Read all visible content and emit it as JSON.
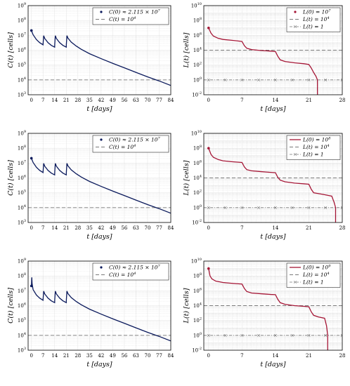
{
  "chart_data": [
    {
      "type": "line",
      "xlabel": "t [days]",
      "ylabel": "C(t) [cells]",
      "xlim": [
        -2,
        84
      ],
      "xticks": [
        0,
        7,
        14,
        21,
        28,
        35,
        42,
        49,
        56,
        63,
        70,
        77,
        84
      ],
      "ylim_exp": [
        3,
        9
      ],
      "yscale": "log",
      "grid": true,
      "legend_position": "top-right",
      "legend": [
        "C(0) ≈ 2.115 × 10^7",
        "C(t) = 10^4"
      ],
      "initial_point": {
        "t": 0,
        "value": 21150000
      },
      "threshold": 10000,
      "series": [
        {
          "values": [
            [
              0,
              21150000.0
            ],
            [
              1,
              11000000.0
            ],
            [
              3,
              5200000.0
            ],
            [
              5,
              3200000.0
            ],
            [
              7,
              2300000.0
            ],
            [
              7.05,
              3000000.0
            ],
            [
              7.4,
              9500000.0
            ],
            [
              8,
              6200000.0
            ],
            [
              10,
              3200000.0
            ],
            [
              12,
              2100000.0
            ],
            [
              14,
              1600000.0
            ],
            [
              14.05,
              2500000.0
            ],
            [
              14.4,
              9500000.0
            ],
            [
              15,
              6200000.0
            ],
            [
              17,
              3200000.0
            ],
            [
              19,
              2100000.0
            ],
            [
              21,
              1600000.0
            ],
            [
              21.05,
              2500000.0
            ],
            [
              21.4,
              9500000.0
            ],
            [
              22,
              6500000.0
            ],
            [
              24,
              3500000.0
            ],
            [
              27,
              1900000.0
            ],
            [
              30,
              1150000.0
            ],
            [
              35,
              580000.0
            ],
            [
              42,
              270000.0
            ],
            [
              49,
              130000.0
            ],
            [
              56,
              65000.0
            ],
            [
              63,
              32000.0
            ],
            [
              70,
              16000.0
            ],
            [
              77,
              8500.0
            ],
            [
              84,
              4200.0
            ]
          ]
        }
      ]
    },
    {
      "type": "line",
      "xlabel": "t [days]",
      "ylabel": "L(t) [cells]",
      "xlim": [
        -1,
        28
      ],
      "xticks": [
        0,
        7,
        14,
        21,
        28
      ],
      "ylim_exp": [
        -2,
        10
      ],
      "yscale": "log",
      "grid": true,
      "legend_position": "top-right",
      "legend": [
        "L(0) = 10^7",
        "L(t) = 10^4",
        "L(t) = 1"
      ],
      "initial_point": {
        "t": 0,
        "value": 10000000
      },
      "threshold": 10000,
      "threshold2": 1,
      "series": [
        {
          "values": [
            [
              0,
              10000000.0
            ],
            [
              0.5,
              2000000.0
            ],
            [
              1,
              800000.0
            ],
            [
              2,
              400000.0
            ],
            [
              3,
              280000.0
            ],
            [
              5,
              210000.0
            ],
            [
              6,
              180000.0
            ],
            [
              7,
              150000.0
            ],
            [
              7.5,
              40000.0
            ],
            [
              8,
              18000.0
            ],
            [
              9,
              12000.0
            ],
            [
              11,
              9000.0
            ],
            [
              13,
              7500.0
            ],
            [
              14,
              6500.0
            ],
            [
              14.5,
              1500.0
            ],
            [
              15,
              500
            ],
            [
              16,
              300
            ],
            [
              18,
              200
            ],
            [
              20,
              150
            ],
            [
              21,
              120
            ],
            [
              21.5,
              40
            ],
            [
              22,
              10
            ],
            [
              22.5,
              3
            ],
            [
              22.8,
              1
            ],
            [
              22.8,
              0.01
            ]
          ]
        }
      ]
    },
    {
      "type": "line",
      "xlabel": "t [days]",
      "ylabel": "C(t) [cells]",
      "xlim": [
        -2,
        84
      ],
      "xticks": [
        0,
        7,
        14,
        21,
        28,
        35,
        42,
        49,
        56,
        63,
        70,
        77,
        84
      ],
      "ylim_exp": [
        3,
        9
      ],
      "yscale": "log",
      "grid": true,
      "legend_position": "top-right",
      "legend": [
        "C(0) ≈ 2.115 × 10^7",
        "C(t) = 10^4"
      ],
      "initial_point": {
        "t": 0,
        "value": 21150000
      },
      "threshold": 10000,
      "series": [
        {
          "values": [
            [
              0,
              21150000.0
            ],
            [
              1,
              11000000.0
            ],
            [
              3,
              5200000.0
            ],
            [
              5,
              3200000.0
            ],
            [
              7,
              2300000.0
            ],
            [
              7.05,
              3000000.0
            ],
            [
              7.4,
              9500000.0
            ],
            [
              8,
              6200000.0
            ],
            [
              10,
              3200000.0
            ],
            [
              12,
              2100000.0
            ],
            [
              14,
              1600000.0
            ],
            [
              14.05,
              2500000.0
            ],
            [
              14.4,
              9500000.0
            ],
            [
              15,
              6200000.0
            ],
            [
              17,
              3200000.0
            ],
            [
              19,
              2100000.0
            ],
            [
              21,
              1600000.0
            ],
            [
              21.05,
              2500000.0
            ],
            [
              21.4,
              9500000.0
            ],
            [
              22,
              6500000.0
            ],
            [
              24,
              3500000.0
            ],
            [
              27,
              1900000.0
            ],
            [
              30,
              1150000.0
            ],
            [
              35,
              580000.0
            ],
            [
              42,
              270000.0
            ],
            [
              49,
              130000.0
            ],
            [
              56,
              65000.0
            ],
            [
              63,
              32000.0
            ],
            [
              70,
              16000.0
            ],
            [
              77,
              8500.0
            ],
            [
              84,
              4200.0
            ]
          ]
        }
      ]
    },
    {
      "type": "line",
      "xlabel": "t [days]",
      "ylabel": "L(t) [cells]",
      "xlim": [
        -1,
        28
      ],
      "xticks": [
        0,
        7,
        14,
        21,
        28
      ],
      "ylim_exp": [
        -2,
        10
      ],
      "yscale": "log",
      "grid": true,
      "legend_position": "top-right",
      "legend": [
        "L(0) = 10^8",
        "L(t) = 10^4",
        "L(t) = 1"
      ],
      "initial_point": {
        "t": 0,
        "value": 100000000
      },
      "threshold": 10000,
      "threshold2": 1,
      "series": [
        {
          "values": [
            [
              0,
              100000000.0
            ],
            [
              0.5,
              15000000.0
            ],
            [
              1,
              6000000.0
            ],
            [
              2,
              3000000.0
            ],
            [
              3,
              2000000.0
            ],
            [
              5,
              1500000.0
            ],
            [
              7,
              1200000.0
            ],
            [
              7.5,
              300000.0
            ],
            [
              8,
              130000.0
            ],
            [
              9,
              90000.0
            ],
            [
              11,
              70000.0
            ],
            [
              13,
              55000.0
            ],
            [
              14,
              50000.0
            ],
            [
              14.5,
              12000.0
            ],
            [
              15,
              5000.0
            ],
            [
              16,
              3000.0
            ],
            [
              18,
              2000.0
            ],
            [
              20,
              1600.0
            ],
            [
              21,
              1400.0
            ],
            [
              21.5,
              300
            ],
            [
              22,
              100
            ],
            [
              24,
              60
            ],
            [
              25,
              45
            ],
            [
              25.8,
              35
            ],
            [
              26.3,
              5
            ],
            [
              26.6,
              1
            ],
            [
              26.6,
              0.01
            ]
          ]
        }
      ]
    },
    {
      "type": "line",
      "xlabel": "t [days]",
      "ylabel": "C(t) [cells]",
      "xlim": [
        -2,
        84
      ],
      "xticks": [
        0,
        7,
        14,
        21,
        28,
        35,
        42,
        49,
        56,
        63,
        70,
        77,
        84
      ],
      "ylim_exp": [
        3,
        9
      ],
      "yscale": "log",
      "grid": true,
      "legend_position": "top-right",
      "legend": [
        "C(0) ≈ 2.115 × 10^7",
        "C(t) = 10^4"
      ],
      "initial_point": {
        "t": 0,
        "value": 21150000
      },
      "threshold": 10000,
      "series": [
        {
          "values": [
            [
              0,
              21150000.0
            ],
            [
              0.2,
              80000000.0
            ],
            [
              0.4,
              30000000.0
            ],
            [
              1,
              12000000.0
            ],
            [
              3,
              5200000.0
            ],
            [
              5,
              3200000.0
            ],
            [
              7,
              2300000.0
            ],
            [
              7.05,
              3000000.0
            ],
            [
              7.4,
              9500000.0
            ],
            [
              8,
              6200000.0
            ],
            [
              10,
              3200000.0
            ],
            [
              12,
              2100000.0
            ],
            [
              14,
              1600000.0
            ],
            [
              14.05,
              2500000.0
            ],
            [
              14.4,
              9500000.0
            ],
            [
              15,
              6200000.0
            ],
            [
              17,
              3200000.0
            ],
            [
              19,
              2100000.0
            ],
            [
              21,
              1600000.0
            ],
            [
              21.05,
              2500000.0
            ],
            [
              21.4,
              9500000.0
            ],
            [
              22,
              6500000.0
            ],
            [
              24,
              3500000.0
            ],
            [
              27,
              1900000.0
            ],
            [
              30,
              1150000.0
            ],
            [
              35,
              580000.0
            ],
            [
              42,
              270000.0
            ],
            [
              49,
              130000.0
            ],
            [
              56,
              65000.0
            ],
            [
              63,
              32000.0
            ],
            [
              70,
              16000.0
            ],
            [
              77,
              8500.0
            ],
            [
              84,
              4200.0
            ]
          ]
        }
      ]
    },
    {
      "type": "line",
      "xlabel": "t [days]",
      "ylabel": "L(t) [cells]",
      "xlim": [
        -1,
        28
      ],
      "xticks": [
        0,
        7,
        14,
        21,
        28
      ],
      "ylim_exp": [
        -2,
        10
      ],
      "yscale": "log",
      "grid": true,
      "legend_position": "top-right",
      "legend": [
        "L(0) = 10^9",
        "L(t) = 10^4",
        "L(t) = 1"
      ],
      "initial_point": {
        "t": 0,
        "value": 1000000000
      },
      "threshold": 10000,
      "threshold2": 1,
      "series": [
        {
          "values": [
            [
              0,
              1000000000.0
            ],
            [
              0.3,
              100000000.0
            ],
            [
              0.7,
              40000000.0
            ],
            [
              1.5,
              20000000.0
            ],
            [
              3,
              13000000.0
            ],
            [
              5,
              10000000.0
            ],
            [
              7,
              8000000.0
            ],
            [
              7.5,
              2000000.0
            ],
            [
              8,
              800000.0
            ],
            [
              9,
              500000.0
            ],
            [
              11,
              400000.0
            ],
            [
              13,
              320000.0
            ],
            [
              14,
              300000.0
            ],
            [
              14.5,
              70000.0
            ],
            [
              15,
              25000.0
            ],
            [
              16,
              15000.0
            ],
            [
              18,
              10000.0
            ],
            [
              20,
              8000.0
            ],
            [
              21,
              7000.0
            ],
            [
              21.5,
              1500.0
            ],
            [
              22,
              500
            ],
            [
              23,
              300
            ],
            [
              24.3,
              200
            ],
            [
              24.7,
              20
            ],
            [
              24.95,
              1
            ],
            [
              24.95,
              0.01
            ]
          ]
        }
      ]
    }
  ],
  "colors": {
    "c_series": "#0b1a5c",
    "l_series": "#a51636",
    "threshold": "#7a7a7a",
    "grid": "#dcdcdc"
  }
}
